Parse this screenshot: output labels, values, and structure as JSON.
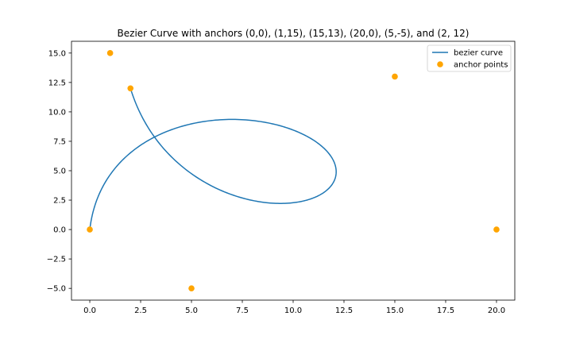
{
  "chart_data": {
    "type": "line",
    "title": "Bezier Curve with anchors (0,0), (1,15), (15,13), (20,0), (5,-5), and (2, 12)",
    "xlabel": "",
    "ylabel": "",
    "xlim": [
      -0.9,
      20.9
    ],
    "ylim": [
      -6.0,
      16.0
    ],
    "x_ticks": [
      0.0,
      2.5,
      5.0,
      7.5,
      10.0,
      12.5,
      15.0,
      17.5,
      20.0
    ],
    "x_tick_labels": [
      "0.0",
      "2.5",
      "5.0",
      "7.5",
      "10.0",
      "12.5",
      "15.0",
      "17.5",
      "20.0"
    ],
    "y_ticks": [
      -5.0,
      -2.5,
      0.0,
      2.5,
      5.0,
      7.5,
      10.0,
      12.5,
      15.0
    ],
    "y_tick_labels": [
      "−5.0",
      "−2.5",
      "0.0",
      "2.5",
      "5.0",
      "7.5",
      "10.0",
      "12.5",
      "15.0"
    ],
    "grid": false,
    "legend_position": "top-right",
    "series": [
      {
        "name": "bezier curve",
        "kind": "line",
        "color": "#1f77b4",
        "control_points": [
          [
            0,
            0
          ],
          [
            1,
            15
          ],
          [
            15,
            13
          ],
          [
            20,
            0
          ],
          [
            5,
            -5
          ],
          [
            2,
            12
          ]
        ]
      },
      {
        "name": "anchor points",
        "kind": "scatter",
        "color": "#ffa500",
        "points": [
          [
            0,
            0
          ],
          [
            1,
            15
          ],
          [
            15,
            13
          ],
          [
            20,
            0
          ],
          [
            5,
            -5
          ],
          [
            2,
            12
          ]
        ]
      }
    ]
  }
}
